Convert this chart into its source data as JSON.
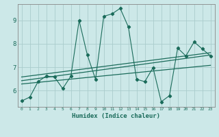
{
  "xlabel": "Humidex (Indice chaleur)",
  "bg_color": "#cce8e8",
  "grid_color": "#b0d8d8",
  "line_color": "#1a6b5a",
  "xlim": [
    -0.5,
    23.5
  ],
  "ylim": [
    5.3,
    9.7
  ],
  "xticks": [
    0,
    1,
    2,
    3,
    4,
    5,
    6,
    7,
    8,
    9,
    10,
    11,
    12,
    13,
    14,
    15,
    16,
    17,
    18,
    19,
    20,
    21,
    22,
    23
  ],
  "yticks": [
    6,
    7,
    8,
    9
  ],
  "main_x": [
    0,
    1,
    2,
    3,
    4,
    5,
    6,
    7,
    8,
    9,
    10,
    11,
    12,
    13,
    14,
    15,
    16,
    17,
    18,
    19,
    20,
    21,
    22,
    23
  ],
  "main_y": [
    5.55,
    5.72,
    6.38,
    6.62,
    6.58,
    6.08,
    6.62,
    9.0,
    7.52,
    6.48,
    9.18,
    9.28,
    9.52,
    8.72,
    6.48,
    6.38,
    6.98,
    5.52,
    5.78,
    7.82,
    7.48,
    8.08,
    7.78,
    7.48
  ],
  "trend1_x": [
    0,
    23
  ],
  "trend1_y": [
    6.28,
    7.08
  ],
  "trend2_x": [
    0,
    23
  ],
  "trend2_y": [
    6.42,
    7.52
  ],
  "trend3_x": [
    0,
    23
  ],
  "trend3_y": [
    6.58,
    7.62
  ]
}
